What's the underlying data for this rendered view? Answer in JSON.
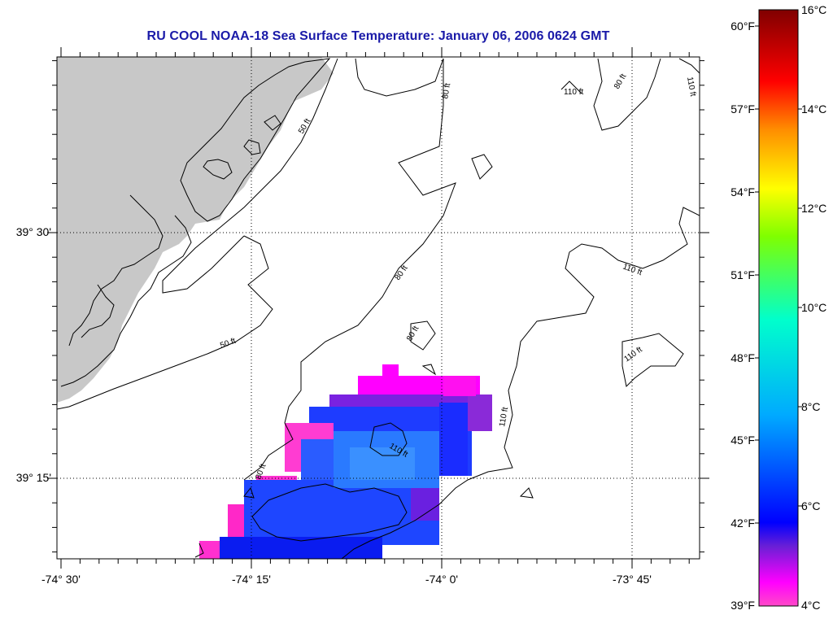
{
  "title": "RU COOL  NOAA-18  Sea Surface Temperature:  January 06, 2006 0624 GMT",
  "x_axis": {
    "tick_labels": [
      "-74° 30'",
      "-74° 15'",
      "-74° 0'",
      "-73° 45'"
    ]
  },
  "y_axis": {
    "tick_labels": [
      "39° 30'",
      "39° 15'"
    ]
  },
  "colorbar": {
    "fahrenheit_labels": [
      "60°F",
      "57°F",
      "54°F",
      "51°F",
      "48°F",
      "45°F",
      "42°F",
      "39°F"
    ],
    "celsius_labels": [
      "16°C",
      "14°C",
      "12°C",
      "10°C",
      "8°C",
      "6°C",
      "4°C"
    ],
    "range_celsius": [
      4,
      16
    ]
  },
  "contours": {
    "labels": [
      "50 ft",
      "80 ft",
      "110 ft"
    ]
  },
  "colors": {
    "land": "#c8c8c8",
    "title": "#1a1aa8",
    "grid": "#000000"
  }
}
